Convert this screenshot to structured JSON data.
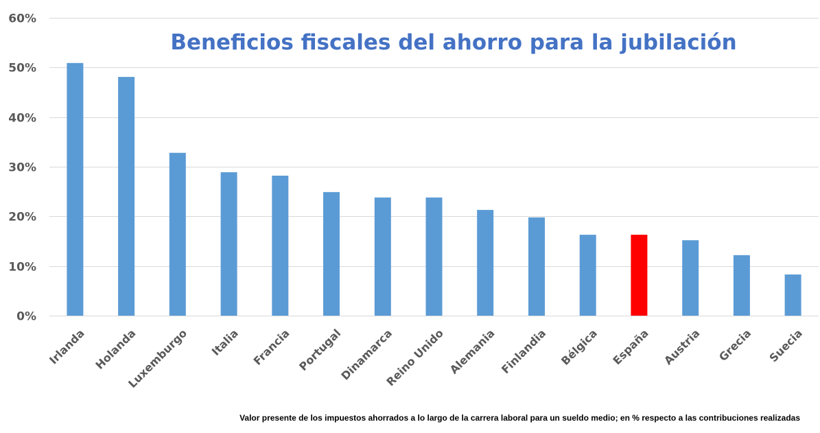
{
  "chart_data": {
    "type": "bar",
    "title": "Beneficios fiscales del ahorro para la jubilación",
    "xlabel": "",
    "ylabel": "",
    "ylim": [
      0,
      60
    ],
    "yticks": [
      0,
      10,
      20,
      30,
      40,
      50,
      60
    ],
    "ytick_labels": [
      "0%",
      "10%",
      "20%",
      "30%",
      "40%",
      "50%",
      "60%"
    ],
    "grid": true,
    "legend": "none",
    "categories": [
      "Irlanda",
      "Holanda",
      "Luxemburgo",
      "Italia",
      "Francia",
      "Portugal",
      "Dinamarca",
      "Reino Unido",
      "Alemania",
      "Finlandia",
      "Bélgica",
      "España",
      "Austria",
      "Grecia",
      "Suecia"
    ],
    "values": [
      50.9,
      48.1,
      32.8,
      28.9,
      28.2,
      24.9,
      23.8,
      23.8,
      21.3,
      19.8,
      16.3,
      16.3,
      15.2,
      12.2,
      8.3
    ],
    "highlight_category": "España",
    "colors": {
      "bar": "#5b9bd5",
      "highlight": "#ff0000",
      "title": "#4472c4",
      "tick": "#595959",
      "grid": "#d9d9d9"
    },
    "annotation": "Valor presente de los impuestos ahorrados a lo largo de la carrera laboral para un sueldo medio; en % respecto a las contribuciones realizadas"
  }
}
